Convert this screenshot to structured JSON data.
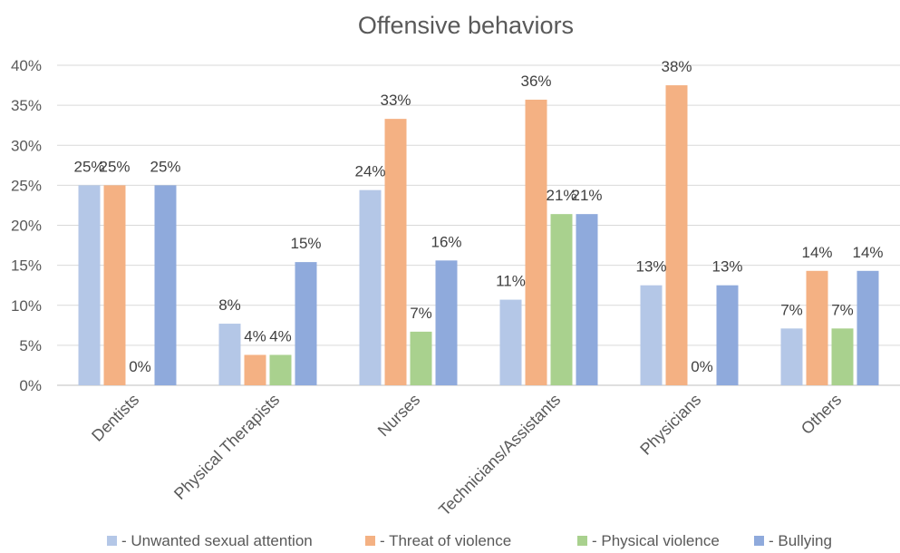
{
  "chart_data": {
    "type": "bar",
    "title": "Offensive behaviors",
    "xlabel": "",
    "ylabel": "",
    "ylim": [
      0,
      0.4
    ],
    "yticks": [
      "0%",
      "5%",
      "10%",
      "15%",
      "20%",
      "25%",
      "30%",
      "35%",
      "40%"
    ],
    "grid": true,
    "legend_position": "bottom",
    "categories": [
      "Dentists",
      "Physical Therapists",
      "Nurses",
      "Technicians/Assistants",
      "Physicians",
      "Others"
    ],
    "series": [
      {
        "name": "- Unwanted sexual attention",
        "color": "#b4c7e7",
        "values": [
          0.25,
          0.077,
          0.244,
          0.107,
          0.125,
          0.071
        ],
        "labels": [
          "25%",
          "8%",
          "24%",
          "11%",
          "13%",
          "7%"
        ]
      },
      {
        "name": "- Threat of violence",
        "color": "#f4b183",
        "values": [
          0.25,
          0.038,
          0.333,
          0.357,
          0.375,
          0.143
        ],
        "labels": [
          "25%",
          "4%",
          "33%",
          "36%",
          "38%",
          "14%"
        ]
      },
      {
        "name": "- Physical violence",
        "color": "#a9d18e",
        "values": [
          0,
          0.038,
          0.067,
          0.214,
          0,
          0.071
        ],
        "labels": [
          "0%",
          "4%",
          "7%",
          "21%",
          "0%",
          "7%"
        ]
      },
      {
        "name": "- Bullying",
        "color": "#8faadc",
        "values": [
          0.25,
          0.154,
          0.156,
          0.214,
          0.125,
          0.143
        ],
        "labels": [
          "25%",
          "15%",
          "16%",
          "21%",
          "13%",
          "14%"
        ]
      }
    ]
  }
}
